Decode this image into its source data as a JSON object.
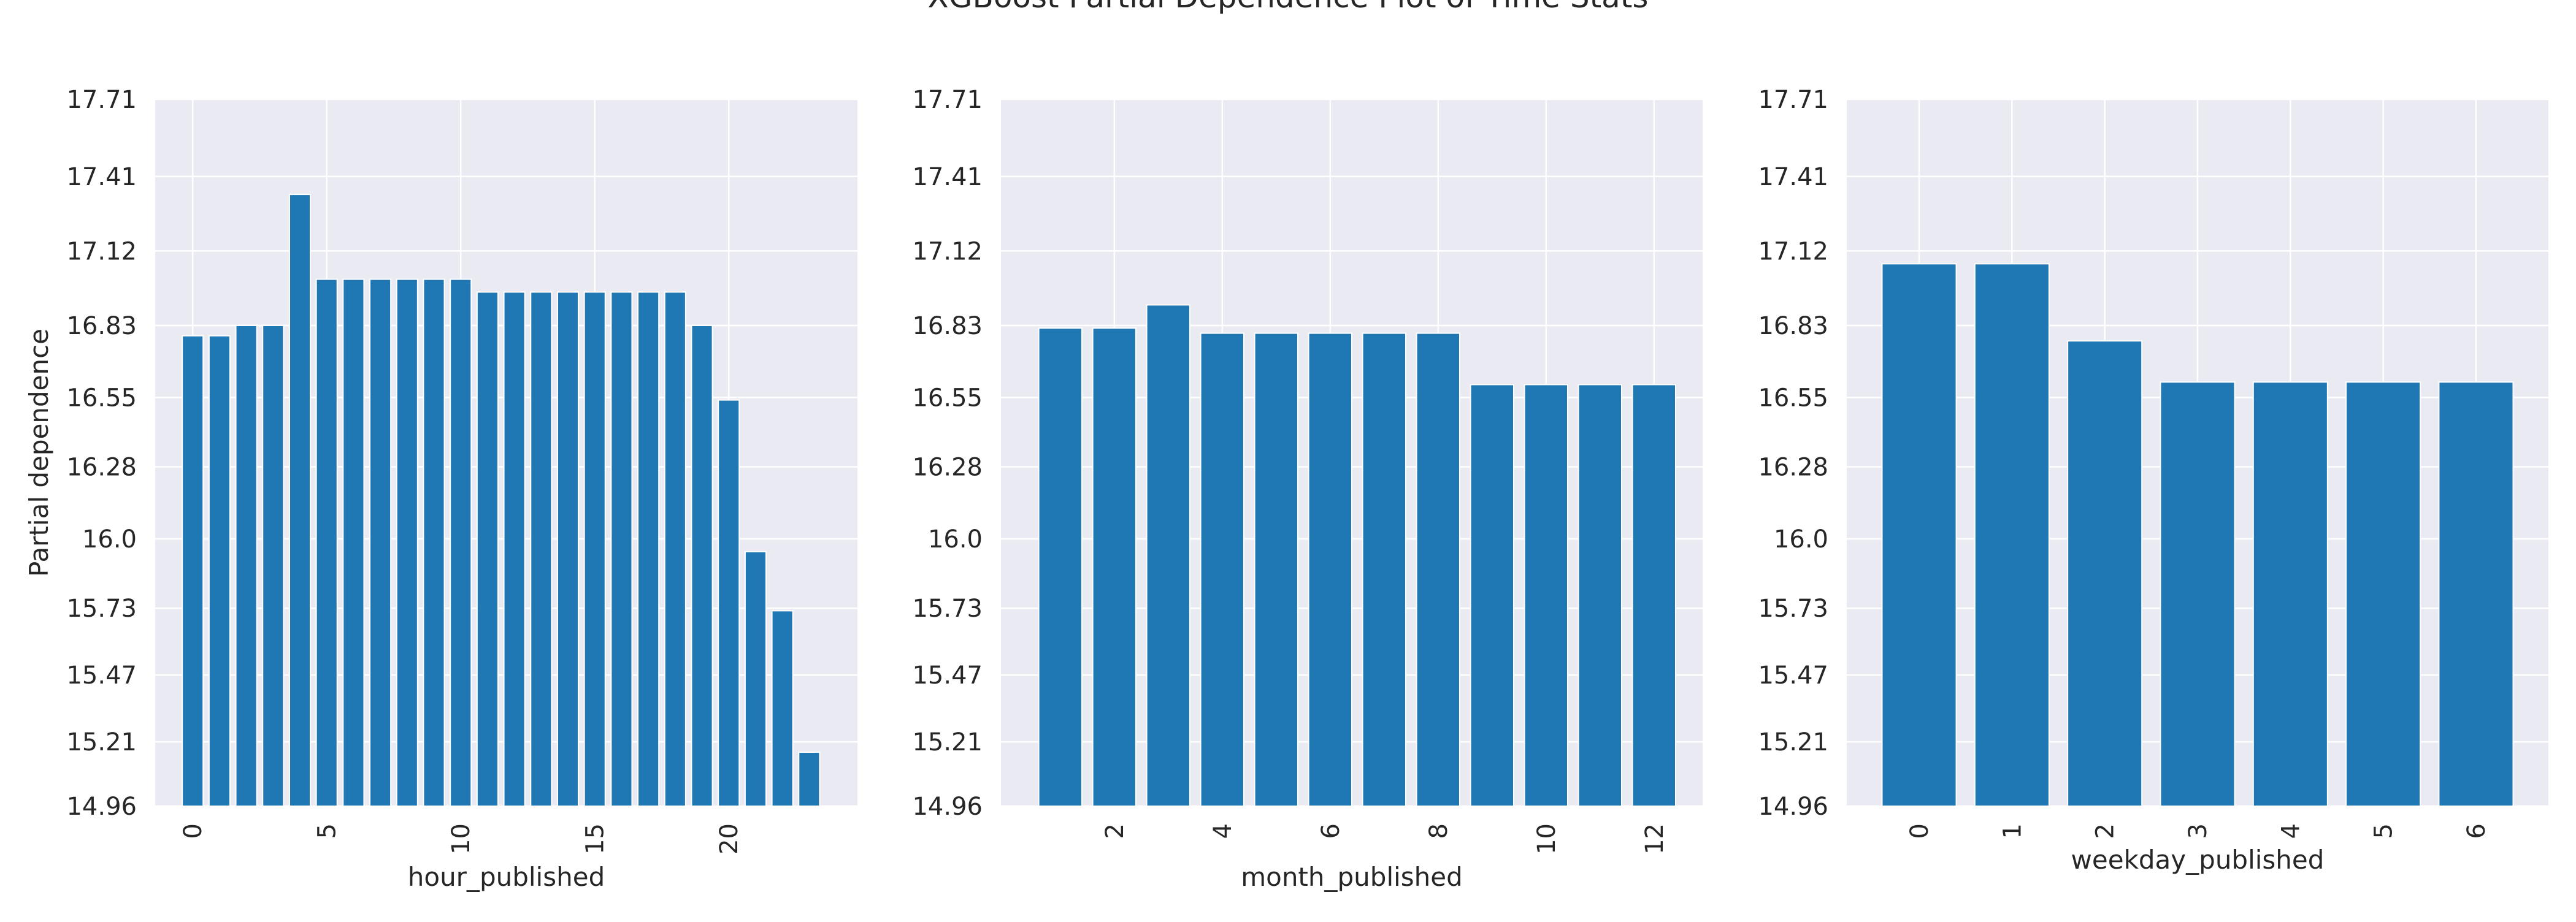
{
  "figure": {
    "title": "XGBoost Partial Dependence Plot of Time Stats",
    "colors": {
      "bar": "#1f77b4",
      "plot_bg": "#eaeaf2",
      "grid": "#ffffff",
      "bar_edge": "#ffffff"
    }
  },
  "chart_data": [
    {
      "type": "bar",
      "title": "",
      "xlabel": "hour_published",
      "ylabel": "Partial dependence",
      "ylim": [
        14.96,
        17.71
      ],
      "yticks": [
        "14.96",
        "15.21",
        "15.47",
        "15.73",
        "16.0",
        "16.28",
        "16.55",
        "16.83",
        "17.12",
        "17.41",
        "17.71"
      ],
      "xlim": [
        -1.4,
        24.8
      ],
      "xticks": [
        "0",
        "5",
        "10",
        "15",
        "20"
      ],
      "x": [
        0,
        1,
        2,
        3,
        4,
        5,
        6,
        7,
        8,
        9,
        10,
        11,
        12,
        13,
        14,
        15,
        16,
        17,
        18,
        19,
        20,
        21,
        22,
        23
      ],
      "values": [
        16.79,
        16.79,
        16.83,
        16.83,
        17.34,
        17.01,
        17.01,
        17.01,
        17.01,
        17.01,
        17.01,
        16.96,
        16.96,
        16.96,
        16.96,
        16.96,
        16.96,
        16.96,
        16.96,
        16.83,
        16.54,
        15.95,
        15.72,
        15.17
      ]
    },
    {
      "type": "bar",
      "title": "",
      "xlabel": "month_published",
      "ylabel": "",
      "ylim": [
        14.96,
        17.71
      ],
      "yticks": [
        "14.96",
        "15.21",
        "15.47",
        "15.73",
        "16.0",
        "16.28",
        "16.55",
        "16.83",
        "17.12",
        "17.41",
        "17.71"
      ],
      "xlim": [
        -0.1,
        12.9
      ],
      "xticks": [
        "2",
        "4",
        "6",
        "8",
        "10",
        "12"
      ],
      "x": [
        1,
        2,
        3,
        4,
        5,
        6,
        7,
        8,
        9,
        10,
        11,
        12
      ],
      "values": [
        16.82,
        16.82,
        16.91,
        16.8,
        16.8,
        16.8,
        16.8,
        16.8,
        16.6,
        16.6,
        16.6,
        16.6
      ]
    },
    {
      "type": "bar",
      "title": "",
      "xlabel": "weekday_published",
      "ylabel": "",
      "ylim": [
        14.96,
        17.71
      ],
      "yticks": [
        "14.96",
        "15.21",
        "15.47",
        "15.73",
        "16.0",
        "16.28",
        "16.55",
        "16.83",
        "17.12",
        "17.41",
        "17.71"
      ],
      "xlim": [
        -0.78,
        6.78
      ],
      "xticks": [
        "0",
        "1",
        "2",
        "3",
        "4",
        "5",
        "6"
      ],
      "x": [
        0,
        1,
        2,
        3,
        4,
        5,
        6
      ],
      "values": [
        17.07,
        17.07,
        16.77,
        16.61,
        16.61,
        16.61,
        16.61
      ]
    }
  ]
}
